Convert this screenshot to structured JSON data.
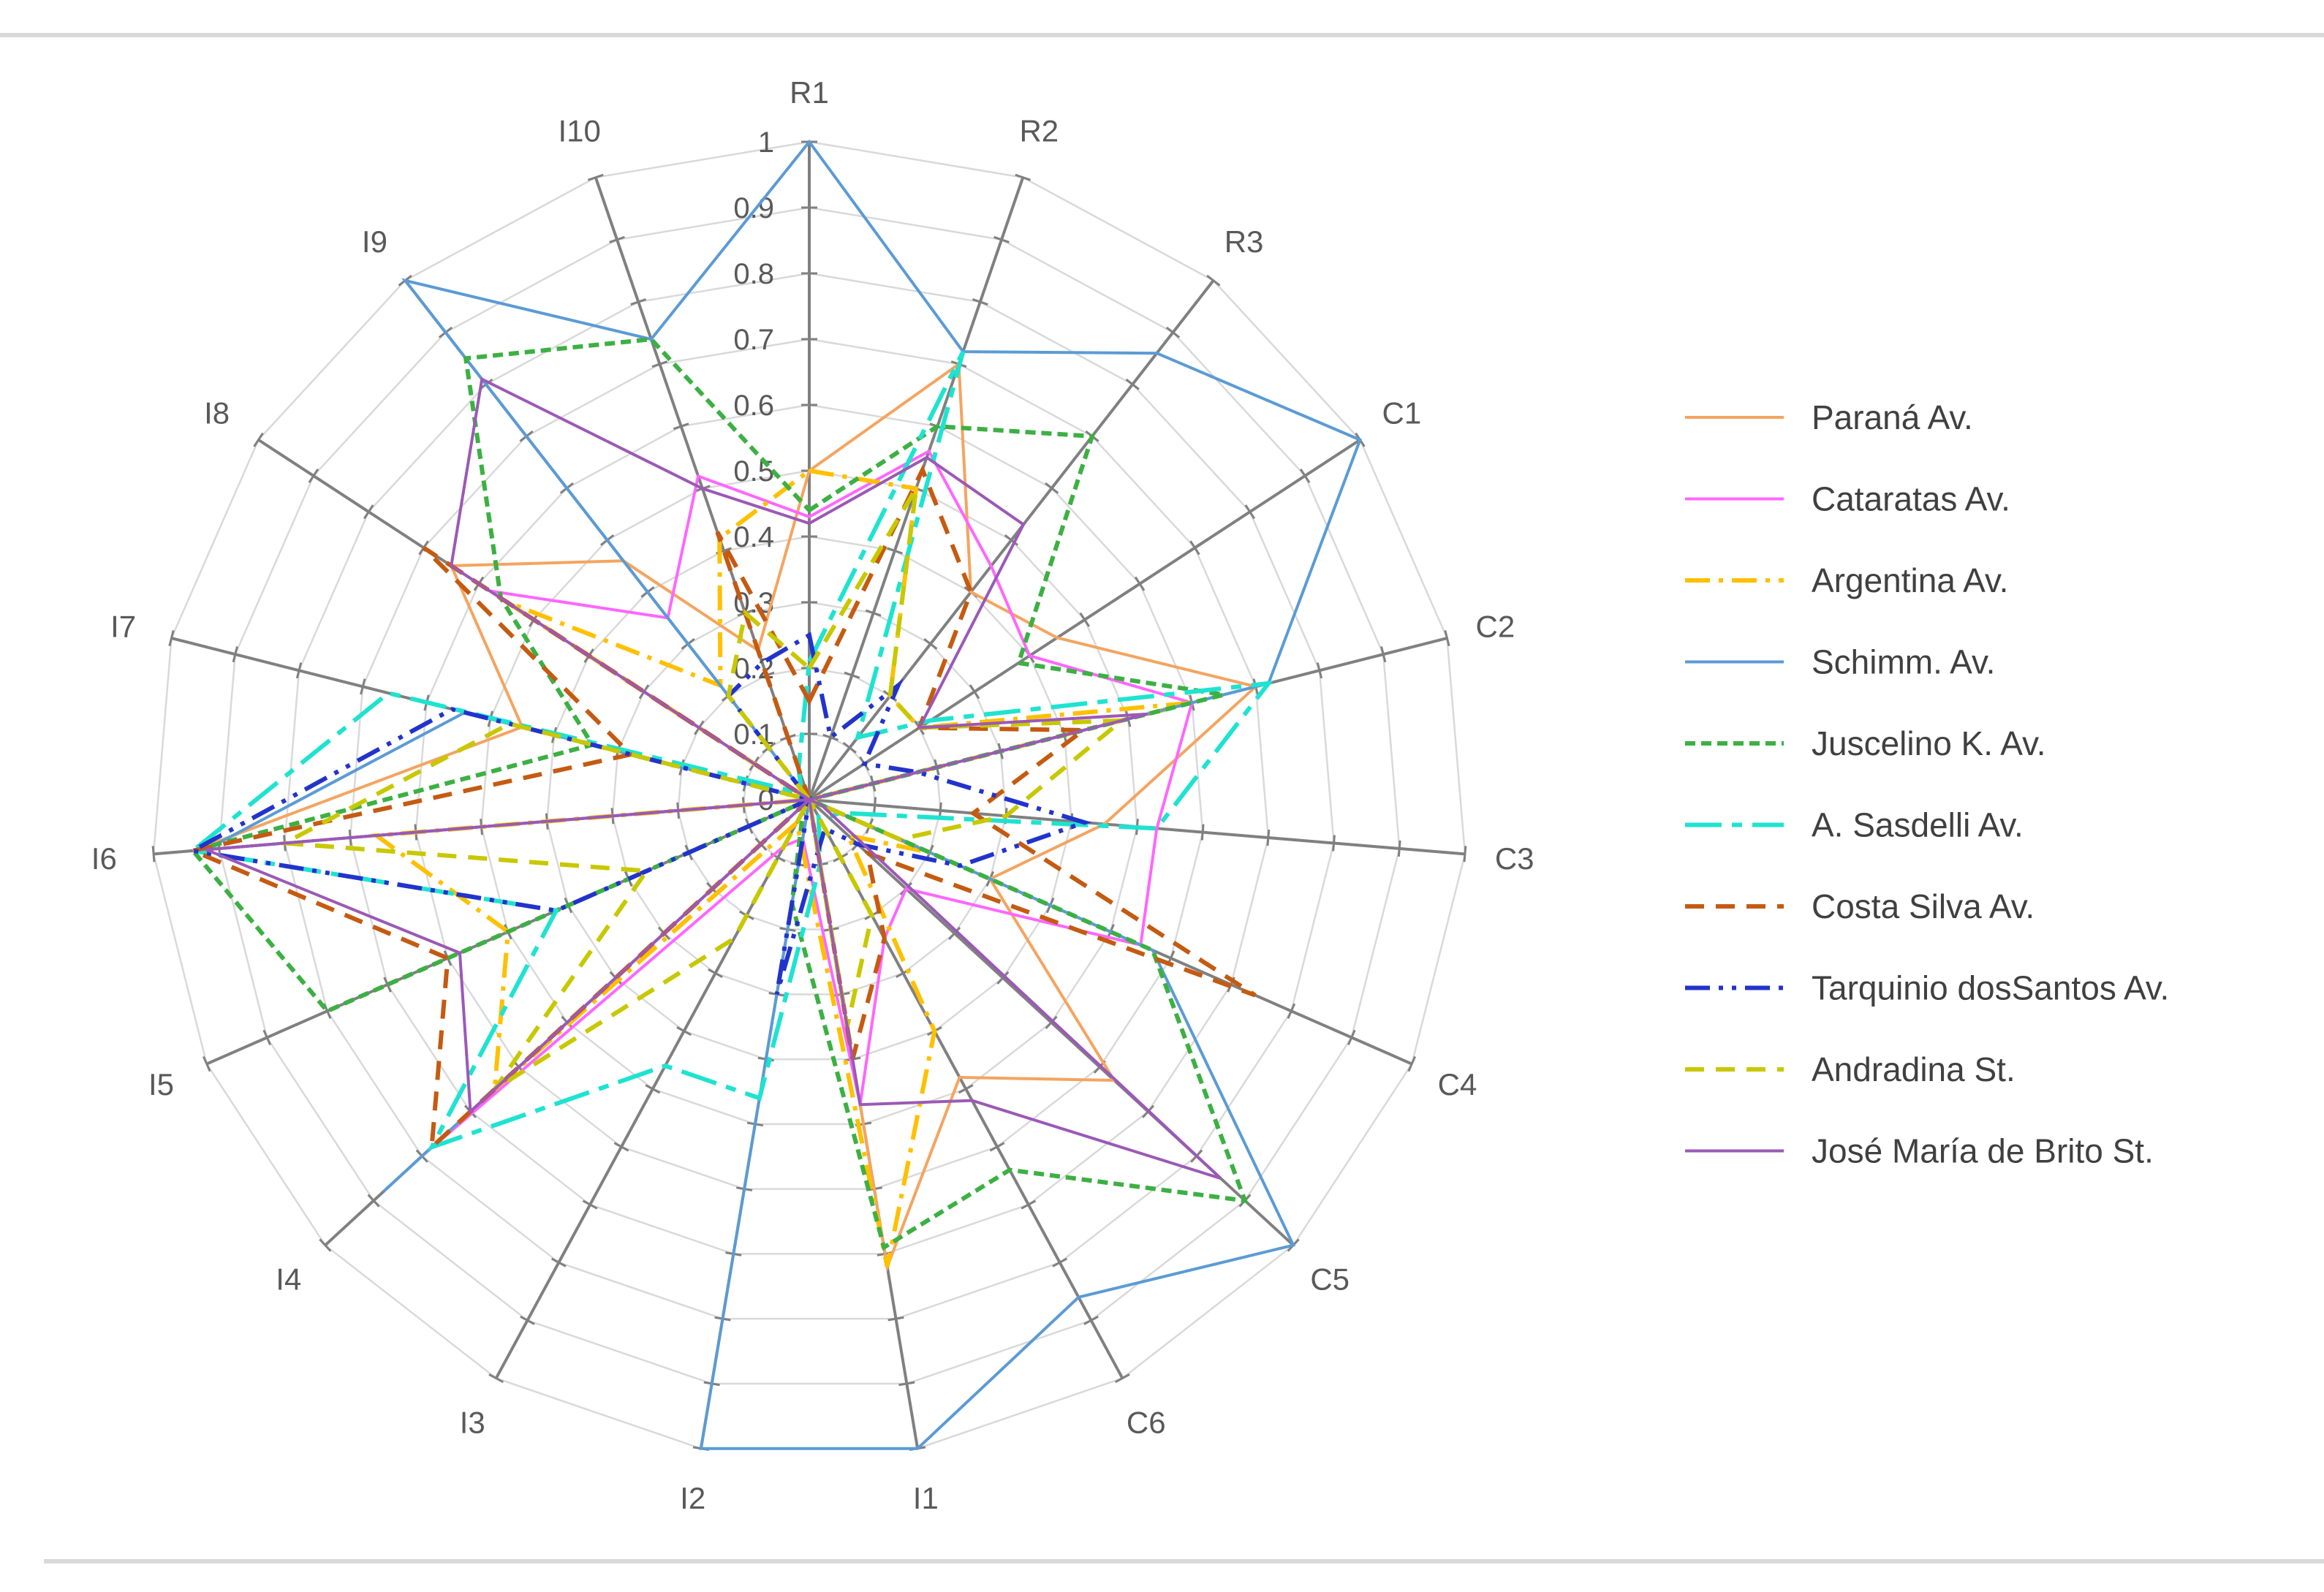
{
  "chart_data": {
    "type": "radar",
    "title": "",
    "axes": [
      "R1",
      "R2",
      "R3",
      "C1",
      "C2",
      "C3",
      "C4",
      "C5",
      "C6",
      "I1",
      "I2",
      "I3",
      "I4",
      "I5",
      "I6",
      "I7",
      "I8",
      "I9",
      "I10"
    ],
    "rlim": [
      0,
      1
    ],
    "ticks": [
      "0",
      "0.1",
      "0.2",
      "0.3",
      "0.4",
      "0.5",
      "0.6",
      "0.7",
      "0.8",
      "0.9",
      "1"
    ],
    "legend_position": "right",
    "series": [
      {
        "name": "Paraná Av.",
        "color": "#f4a460",
        "dash": "solid",
        "values": [
          0.5,
          0.7,
          0.4,
          0.45,
          0.7,
          0.45,
          0.3,
          0.63,
          0.48,
          0.72,
          0.0,
          0.0,
          0.79,
          0.0,
          0.94,
          0.45,
          0.65,
          0.46,
          0.24
        ]
      },
      {
        "name": "Cataratas Av.",
        "color": "#ff66ff",
        "dash": "solid",
        "values": [
          0.43,
          0.56,
          0.45,
          0.4,
          0.6,
          0.53,
          0.55,
          0.2,
          0.24,
          0.47,
          0.06,
          0.08,
          0.8,
          0.0,
          0.94,
          0.0,
          0.58,
          0.35,
          0.52
        ]
      },
      {
        "name": "Argentina Av.",
        "color": "#ffc000",
        "dash": "dashdot",
        "values": [
          0.5,
          0.5,
          0.2,
          0.2,
          0.6,
          0.0,
          0.2,
          0.08,
          0.4,
          0.72,
          0.07,
          0.04,
          0.65,
          0.5,
          0.66,
          0.0,
          0.55,
          0.22,
          0.42
        ]
      },
      {
        "name": "Schimm. Av.",
        "color": "#5b9bd5",
        "dash": "solid",
        "values": [
          1.0,
          0.72,
          0.86,
          1.0,
          0.72,
          0.0,
          0.57,
          1.0,
          0.86,
          1.0,
          1.0,
          0.0,
          0.88,
          0.0,
          0.92,
          0.54,
          0.0,
          1.0,
          0.74
        ]
      },
      {
        "name": "Juscelino K. Av.",
        "color": "#3cb043",
        "dash": "dotted",
        "values": [
          0.44,
          0.6,
          0.7,
          0.38,
          0.65,
          0.0,
          0.57,
          0.9,
          0.64,
          0.69,
          0.16,
          0.02,
          0.0,
          0.8,
          0.94,
          0.34,
          0.56,
          0.85,
          0.74
        ]
      },
      {
        "name": "A. Sasdelli Av.",
        "color": "#1ee3d0",
        "dash": "longdash",
        "values": [
          0.21,
          0.72,
          0.12,
          0.22,
          0.72,
          0.53,
          0.05,
          0.04,
          0.03,
          0.1,
          0.46,
          0.46,
          0.78,
          0.42,
          0.94,
          0.66,
          0.02,
          0.02,
          0.05
        ]
      },
      {
        "name": "Costa Silva Av.",
        "color": "#c55a11",
        "dash": "dashed",
        "values": [
          0.15,
          0.53,
          0.4,
          0.2,
          0.43,
          0.25,
          0.74,
          0.12,
          0.24,
          0.4,
          0.0,
          0.0,
          0.78,
          0.6,
          0.94,
          0.28,
          0.7,
          0.0,
          0.43
        ]
      },
      {
        "name": "Tarquinio dosSantos Av.",
        "color": "#2233cc",
        "dash": "dashdotdot",
        "values": [
          0.25,
          0.1,
          0.22,
          0.1,
          0.17,
          0.42,
          0.25,
          0.1,
          0.05,
          0.08,
          0.3,
          0.0,
          0.0,
          0.42,
          0.94,
          0.56,
          0.0,
          0.2,
          0.22
        ]
      },
      {
        "name": "Andradina St.",
        "color": "#c8c800",
        "dash": "dashed",
        "values": [
          0.2,
          0.5,
          0.2,
          0.2,
          0.49,
          0.3,
          0.15,
          0.0,
          0.2,
          0.35,
          0.0,
          0.24,
          0.65,
          0.27,
          0.8,
          0.47,
          0.0,
          0.2,
          0.3
        ]
      },
      {
        "name": "José María de Brito St.",
        "color": "#9b59b6",
        "dash": "solid",
        "values": [
          0.42,
          0.55,
          0.53,
          0.2,
          0.53,
          0.0,
          0.02,
          0.85,
          0.52,
          0.47,
          0.0,
          0.0,
          0.7,
          0.58,
          0.92,
          0.0,
          0.65,
          0.81,
          0.5
        ]
      }
    ]
  }
}
